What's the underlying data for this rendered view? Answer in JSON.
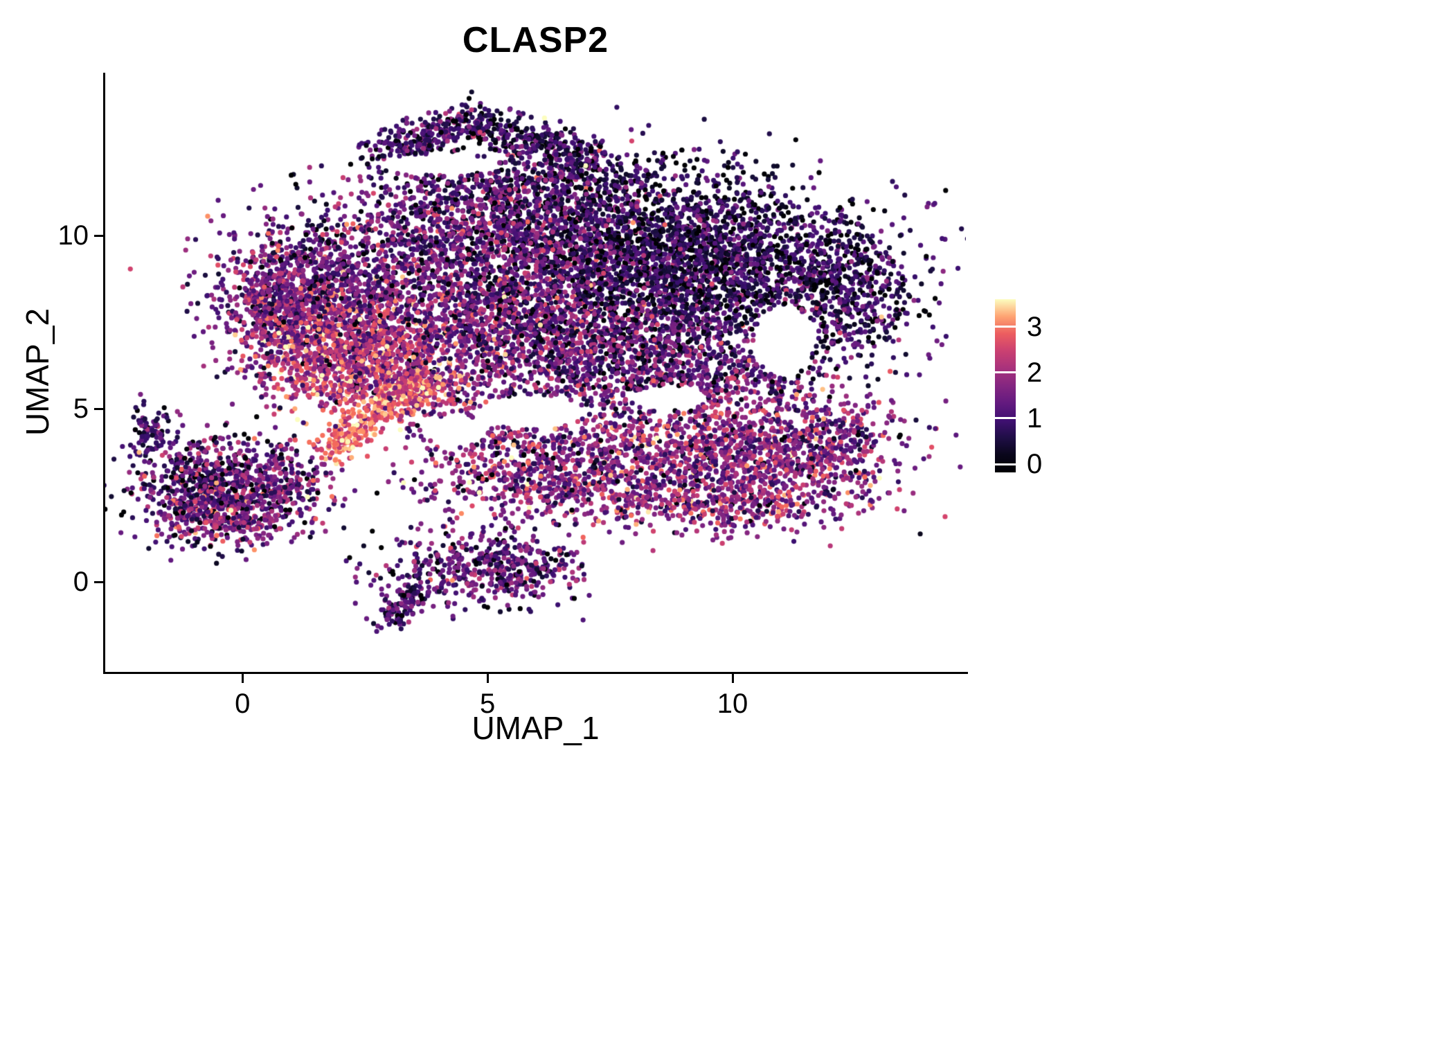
{
  "chart_data": {
    "type": "scatter",
    "title": "CLASP2",
    "xlabel": "UMAP_1",
    "ylabel": "UMAP_2",
    "x_ticks": [
      0,
      5,
      10
    ],
    "y_ticks": [
      0,
      5,
      10
    ],
    "xlim": [
      -2.8,
      14.76
    ],
    "ylim": [
      -2.6,
      14.7
    ],
    "grid": false,
    "expr_max": 3.6,
    "point_radius_px": 3.6,
    "seed": 42,
    "legend": {
      "type": "colorbar",
      "position": "right",
      "ticks": [
        0,
        1,
        2,
        3
      ],
      "vmin": -0.18,
      "vmax": 3.6
    },
    "colormap": {
      "name": "magma",
      "stops": [
        [
          0.0,
          0,
          0,
          4
        ],
        [
          0.125,
          20,
          14,
          54
        ],
        [
          0.25,
          59,
          15,
          112
        ],
        [
          0.375,
          101,
          26,
          128
        ],
        [
          0.5,
          140,
          41,
          129
        ],
        [
          0.625,
          183,
          55,
          121
        ],
        [
          0.75,
          222,
          73,
          104
        ],
        [
          0.8125,
          244,
          105,
          92
        ],
        [
          0.875,
          254,
          148,
          103
        ],
        [
          0.9375,
          254,
          196,
          136
        ],
        [
          1.0,
          252,
          253,
          191
        ]
      ]
    },
    "clusters": [
      {
        "name": "top-arc-left",
        "type": "line",
        "n": 300,
        "x1": 2.7,
        "y1": 12.15,
        "x2": 4.6,
        "y2": 13.35,
        "w": 0.3,
        "mu": 0.9,
        "sd": 0.6
      },
      {
        "name": "top-arc-right",
        "type": "line",
        "n": 300,
        "x1": 4.6,
        "y1": 13.35,
        "x2": 7.2,
        "y2": 12.25,
        "w": 0.28,
        "mu": 0.7,
        "sd": 0.55
      },
      {
        "name": "top-arc-spray",
        "type": "blob",
        "n": 150,
        "cx": 6.8,
        "cy": 11.7,
        "sx": 0.8,
        "sy": 0.5,
        "mu": 0.5,
        "sd": 0.5
      },
      {
        "name": "upper-sparse",
        "type": "blob",
        "n": 250,
        "cx": 5.5,
        "cy": 11.5,
        "sx": 1.5,
        "sy": 0.55,
        "mu": 1.0,
        "sd": 0.7
      },
      {
        "name": "upper-mid",
        "type": "blob",
        "n": 1500,
        "cx": 5.2,
        "cy": 10.2,
        "sx": 1.7,
        "sy": 1.05,
        "mu": 1.15,
        "sd": 0.75
      },
      {
        "name": "upper-right-dark",
        "type": "blob",
        "n": 2600,
        "cx": 9.0,
        "cy": 9.35,
        "sx": 1.85,
        "sy": 1.2,
        "mu": 0.6,
        "sd": 0.55
      },
      {
        "name": "right-edge",
        "type": "blob",
        "n": 550,
        "cx": 12.2,
        "cy": 8.3,
        "sx": 0.75,
        "sy": 1.1,
        "mu": 0.7,
        "sd": 0.6
      },
      {
        "name": "left-shoulder",
        "type": "blob",
        "n": 900,
        "cx": 1.6,
        "cy": 8.6,
        "sx": 1.05,
        "sy": 1.05,
        "mu": 1.35,
        "sd": 0.75
      },
      {
        "name": "left-edge",
        "type": "blob",
        "n": 450,
        "cx": 0.8,
        "cy": 7.9,
        "sx": 0.55,
        "sy": 0.9,
        "mu": 1.6,
        "sd": 0.7
      },
      {
        "name": "left-bright",
        "type": "blob",
        "n": 1000,
        "cx": 2.2,
        "cy": 6.4,
        "sx": 0.95,
        "sy": 0.85,
        "mu": 2.3,
        "sd": 0.7
      },
      {
        "name": "mid-core",
        "type": "blob",
        "n": 1800,
        "cx": 5.3,
        "cy": 7.3,
        "sx": 1.8,
        "sy": 1.25,
        "mu": 1.5,
        "sd": 0.8
      },
      {
        "name": "mid-right",
        "type": "blob",
        "n": 1200,
        "cx": 8.5,
        "cy": 6.3,
        "sx": 1.7,
        "sy": 1.0,
        "mu": 1.2,
        "sd": 0.7
      },
      {
        "name": "lower-right",
        "type": "blob",
        "n": 1300,
        "cx": 10.2,
        "cy": 3.7,
        "sx": 1.5,
        "sy": 1.05,
        "mu": 1.7,
        "sd": 0.75
      },
      {
        "name": "lower-right-tip",
        "type": "blob",
        "n": 180,
        "cx": 12.2,
        "cy": 3.9,
        "sx": 0.5,
        "sy": 0.7,
        "mu": 1.4,
        "sd": 0.7
      },
      {
        "name": "lower-right-bottom",
        "type": "blob",
        "n": 200,
        "cx": 9.8,
        "cy": 2.2,
        "sx": 1.3,
        "sy": 0.3,
        "mu": 1.8,
        "sd": 0.7
      },
      {
        "name": "bottom-band",
        "type": "blob",
        "n": 800,
        "cx": 6.6,
        "cy": 3.1,
        "sx": 1.5,
        "sy": 0.7,
        "mu": 1.6,
        "sd": 0.8
      },
      {
        "name": "band-bridge",
        "type": "blob",
        "n": 180,
        "cx": 5.2,
        "cy": 4.4,
        "sx": 0.9,
        "sy": 0.45,
        "mu": 1.5,
        "sd": 0.7
      },
      {
        "name": "bright-streak",
        "type": "line",
        "n": 260,
        "x1": 1.7,
        "y1": 3.7,
        "x2": 3.3,
        "y2": 5.6,
        "w": 0.22,
        "mu": 2.9,
        "sd": 0.45
      },
      {
        "name": "streak-knot",
        "type": "blob",
        "n": 220,
        "cx": 3.6,
        "cy": 5.6,
        "sx": 0.45,
        "sy": 0.35,
        "mu": 2.6,
        "sd": 0.6
      },
      {
        "name": "left-island",
        "type": "blob",
        "n": 900,
        "cx": -0.5,
        "cy": 2.7,
        "sx": 0.85,
        "sy": 0.75,
        "mu": 1.15,
        "sd": 0.75
      },
      {
        "name": "island-bright-edge",
        "type": "blob",
        "n": 120,
        "cx": -0.3,
        "cy": 1.75,
        "sx": 0.6,
        "sy": 0.25,
        "mu": 2.0,
        "sd": 0.6
      },
      {
        "name": "island-tail",
        "type": "blob",
        "n": 90,
        "cx": -1.85,
        "cy": 4.3,
        "sx": 0.22,
        "sy": 0.4,
        "mu": 0.8,
        "sd": 0.5
      },
      {
        "name": "island-right-sparse",
        "type": "blob",
        "n": 140,
        "cx": 0.9,
        "cy": 2.9,
        "sx": 0.5,
        "sy": 0.45,
        "mu": 1.4,
        "sd": 0.7
      },
      {
        "name": "bottom-island",
        "type": "blob",
        "n": 420,
        "cx": 4.7,
        "cy": 0.35,
        "sx": 0.95,
        "sy": 0.55,
        "mu": 1.15,
        "sd": 0.7
      },
      {
        "name": "bottom-island-right",
        "type": "blob",
        "n": 80,
        "cx": 5.9,
        "cy": 0.7,
        "sx": 0.5,
        "sy": 0.35,
        "mu": 1.2,
        "sd": 0.7
      },
      {
        "name": "bottom-island-tail",
        "type": "line",
        "n": 110,
        "x1": 3.6,
        "y1": -0.1,
        "x2": 2.9,
        "y2": -1.15,
        "w": 0.18,
        "mu": 1.0,
        "sd": 0.6
      }
    ],
    "holes": [
      {
        "cx": 5.9,
        "cy": 4.9,
        "rx": 1.1,
        "ry": 0.5
      },
      {
        "cx": 4.35,
        "cy": 4.35,
        "rx": 0.65,
        "ry": 0.45
      },
      {
        "cx": 11.05,
        "cy": 6.95,
        "rx": 0.62,
        "ry": 1.02
      },
      {
        "cx": 4.0,
        "cy": 12.05,
        "rx": 1.25,
        "ry": 0.3
      },
      {
        "cx": 8.7,
        "cy": 5.3,
        "rx": 0.8,
        "ry": 0.35
      }
    ]
  },
  "colors": {
    "background": "#ffffff",
    "axis": "#000000",
    "text": "#000000"
  }
}
